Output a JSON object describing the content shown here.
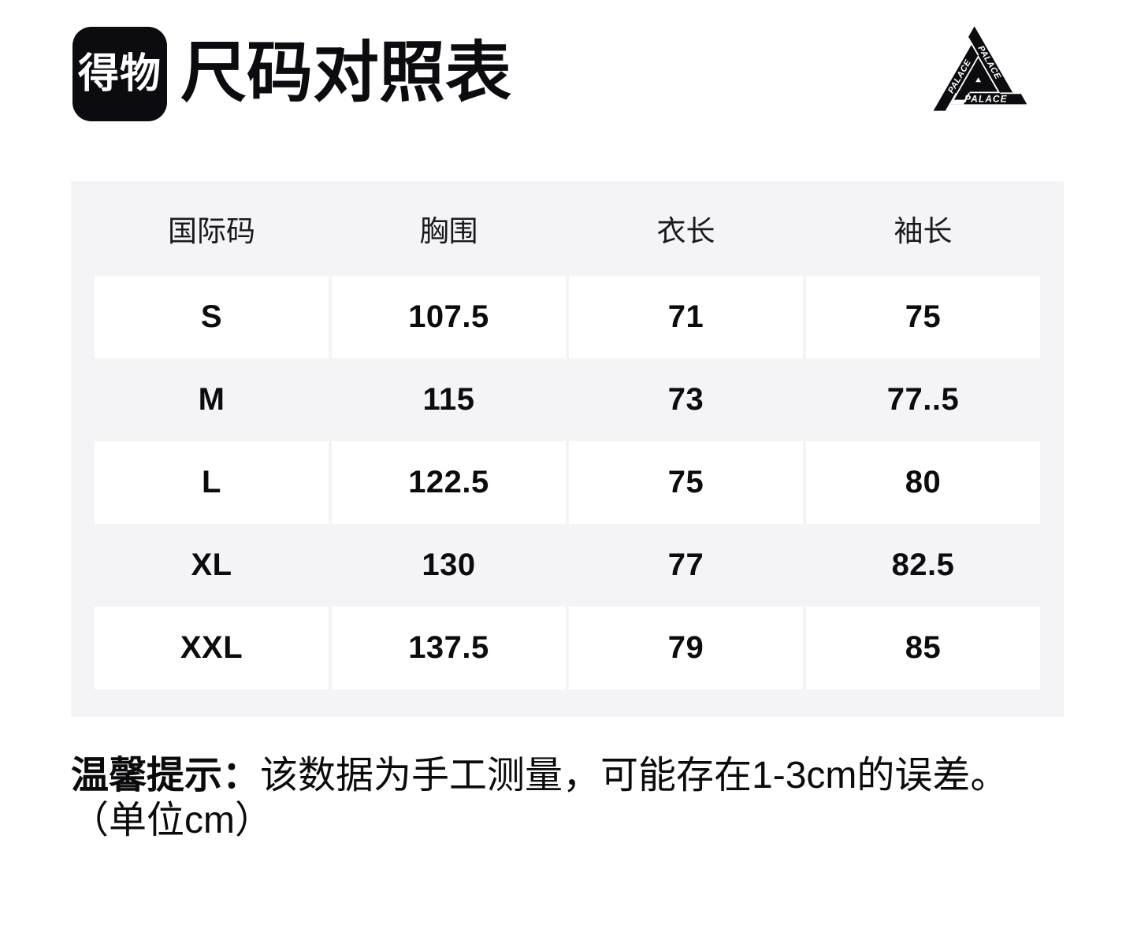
{
  "header": {
    "logo_text": "得物",
    "title": "尺码对照表"
  },
  "palace_logo": {
    "word_left": "PALACE",
    "word_right": "PALACE",
    "word_bottom": "PALACE"
  },
  "size_table": {
    "columns": [
      "国际码",
      "胸围",
      "衣长",
      "袖长"
    ],
    "rows": [
      [
        "S",
        "107.5",
        "71",
        "75"
      ],
      [
        "M",
        "115",
        "73",
        "77..5"
      ],
      [
        "L",
        "122.5",
        "75",
        "80"
      ],
      [
        "XL",
        "130",
        "77",
        "82.5"
      ],
      [
        "XXL",
        "137.5",
        "79",
        "85"
      ]
    ]
  },
  "footer": {
    "tip_label": "温馨提示：",
    "tip_text": "该数据为手工测量，可能存在1-3cm的误差。",
    "unit_note": "（单位cm）"
  },
  "colors": {
    "panel": "#f4f4f6",
    "ink": "#0c0c0f",
    "cell": "#ffffff",
    "logo_bg": "#0c0c10"
  }
}
